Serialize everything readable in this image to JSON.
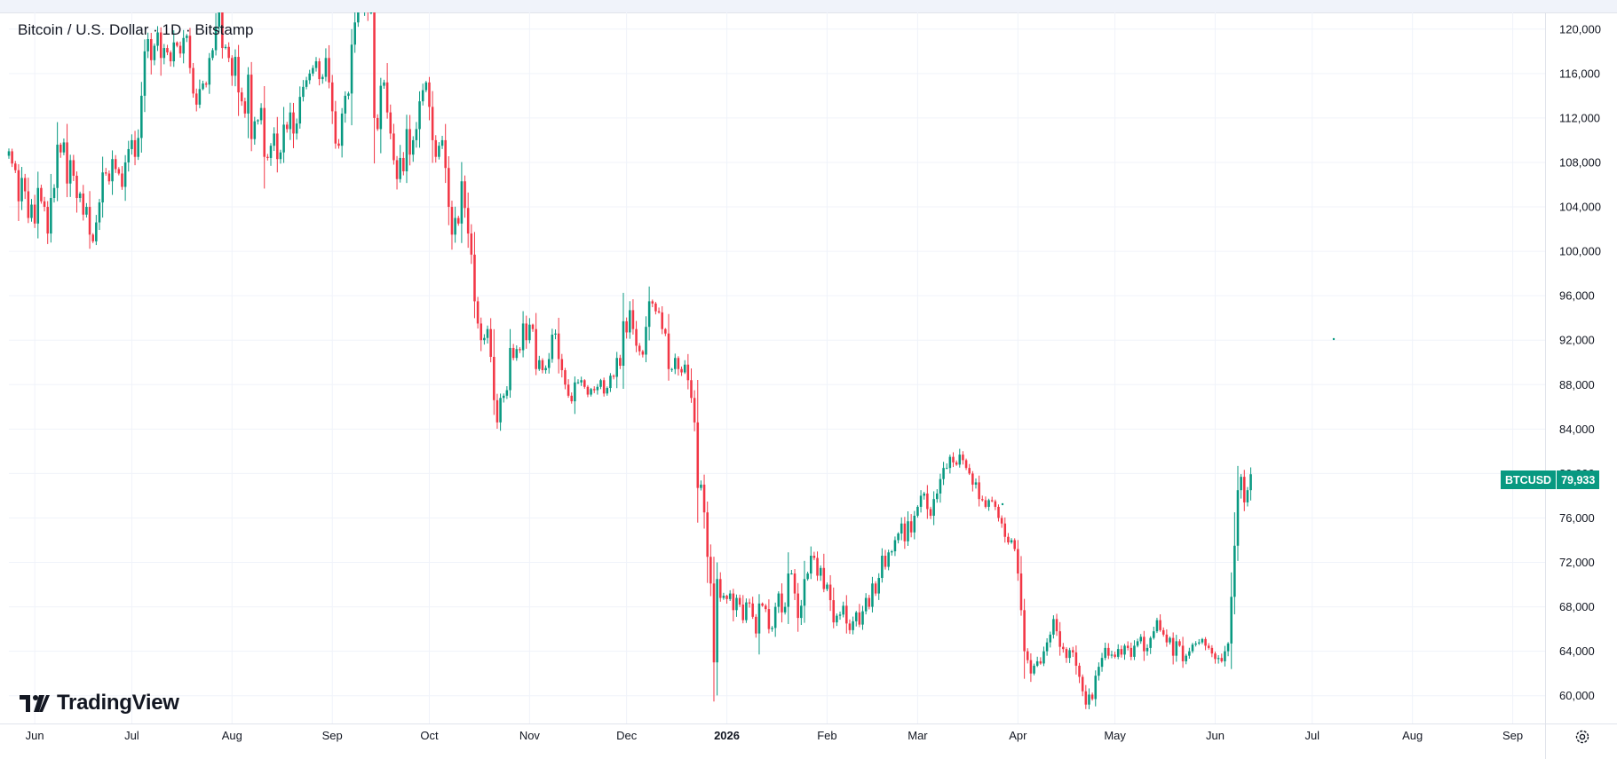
{
  "legend": {
    "title": "Bitcoin / U.S. Dollar · 1D · Bitstamp"
  },
  "branding": {
    "logo_text": "TradingView"
  },
  "price_badge": {
    "symbol": "BTCUSD",
    "value": "79,933"
  },
  "colors": {
    "up": "#089981",
    "down": "#f23645",
    "grid": "#f0f3fa",
    "text": "#131722"
  },
  "icons": {
    "settings": "settings-icon",
    "logo": "tradingview-logo-icon"
  },
  "chart_data": {
    "type": "candlestick",
    "interval": "1D",
    "grid": true,
    "y_axis": {
      "side": "right",
      "range": [
        57500,
        121500
      ],
      "ticks": [
        60000,
        64000,
        68000,
        72000,
        76000,
        80000,
        84000,
        88000,
        92000,
        96000,
        100000,
        104000,
        108000,
        112000,
        116000,
        120000
      ],
      "tick_labels": [
        "60,000",
        "64,000",
        "68,000",
        "72,000",
        "76,000",
        "80,000",
        "84,000",
        "88,000",
        "92,000",
        "96,000",
        "100,000",
        "104,000",
        "108,000",
        "112,000",
        "116,000",
        "120,000"
      ]
    },
    "x_axis": {
      "range": [
        "2025-05-24",
        "2026-09-11"
      ],
      "ticks": [
        {
          "date": "2025-06-01",
          "label": "Jun"
        },
        {
          "date": "2025-07-01",
          "label": "Jul"
        },
        {
          "date": "2025-08-01",
          "label": "Aug"
        },
        {
          "date": "2025-09-01",
          "label": "Sep"
        },
        {
          "date": "2025-10-01",
          "label": "Oct"
        },
        {
          "date": "2025-11-01",
          "label": "Nov"
        },
        {
          "date": "2025-12-01",
          "label": "Dec"
        },
        {
          "date": "2026-01-01",
          "label": "2026",
          "bold": true
        },
        {
          "date": "2026-02-01",
          "label": "Feb"
        },
        {
          "date": "2026-03-01",
          "label": "Mar"
        },
        {
          "date": "2026-04-01",
          "label": "Apr"
        },
        {
          "date": "2026-05-01",
          "label": "May"
        },
        {
          "date": "2026-06-01",
          "label": "Jun"
        },
        {
          "date": "2026-07-01",
          "label": "Jul"
        },
        {
          "date": "2026-08-01",
          "label": "Aug"
        },
        {
          "date": "2026-09-01",
          "label": "Sep"
        }
      ]
    },
    "first_date": "2025-05-24",
    "closes": [
      109000,
      107900,
      107300,
      104500,
      106600,
      105400,
      103000,
      104200,
      102500,
      105700,
      104500,
      104000,
      101600,
      104800,
      105700,
      109600,
      108900,
      109800,
      106100,
      108200,
      106800,
      104800,
      105200,
      103300,
      104000,
      101500,
      100900,
      102600,
      104400,
      107100,
      107000,
      106300,
      108300,
      107400,
      107000,
      105800,
      108000,
      109200,
      110000,
      108500,
      110200,
      114000,
      118000,
      119100,
      117200,
      118500,
      119700,
      117400,
      118300,
      117900,
      117100,
      118800,
      118500,
      117800,
      119200,
      119400,
      116500,
      114200,
      113200,
      114600,
      115100,
      115000,
      117400,
      118100,
      120200,
      123100,
      118300,
      118400,
      117400,
      115800,
      117500,
      114300,
      113500,
      112400,
      115900,
      110100,
      111700,
      111800,
      112900,
      108500,
      108400,
      109500,
      110600,
      108300,
      108900,
      111400,
      111000,
      112500,
      110600,
      111500,
      113900,
      114800,
      115400,
      116000,
      116500,
      117100,
      115500,
      115700,
      117400,
      115200,
      112600,
      109700,
      109500,
      112400,
      114000,
      114200,
      118600,
      120600,
      122200,
      122300,
      124700,
      121500,
      121500,
      112000,
      111000,
      114900,
      115200,
      112500,
      110600,
      108200,
      106500,
      108400,
      107200,
      111000,
      108700,
      110000,
      111000,
      113500,
      114500,
      115200,
      113000,
      110000,
      108500,
      109500,
      110000,
      107500,
      104000,
      101500,
      103000,
      102500,
      106300,
      103900,
      101600,
      99700,
      95500,
      93500,
      92000,
      92200,
      93000,
      90500,
      86600,
      84600,
      86800,
      87000,
      87500,
      91300,
      90400,
      91200,
      91100,
      93500,
      92000,
      93400,
      93000,
      89400,
      90200,
      89300,
      89500,
      90300,
      92500,
      92600,
      90300,
      89300,
      88000,
      87000,
      86500,
      88200,
      88200,
      88400,
      87800,
      87100,
      87600,
      87500,
      87800,
      88400,
      87200,
      87700,
      88800,
      88700,
      90400,
      89700,
      93700,
      92700,
      94700,
      93000,
      91500,
      91000,
      90700,
      93200,
      95500,
      95300,
      94600,
      94500,
      93000,
      92600,
      89400,
      89400,
      90400,
      89400,
      89100,
      89800,
      88400,
      86800,
      84600,
      78700,
      79000,
      76500,
      72500,
      70100,
      63000,
      70500,
      68800,
      69000,
      68700,
      69200,
      67700,
      68800,
      68200,
      66800,
      68400,
      68300,
      67100,
      65600,
      68300,
      68100,
      67800,
      66000,
      66100,
      68000,
      69200,
      67500,
      68000,
      71000,
      71000,
      69200,
      67000,
      68100,
      70500,
      71000,
      72600,
      72400,
      70800,
      71500,
      69600,
      70000,
      68600,
      66600,
      67200,
      67300,
      68100,
      66500,
      65900,
      66700,
      67500,
      66400,
      67600,
      68800,
      68000,
      70100,
      69200,
      70600,
      72600,
      71600,
      72900,
      73000,
      74000,
      74600,
      75500,
      73900,
      75700,
      74700,
      76200,
      77000,
      78000,
      78200,
      76800,
      76200,
      77700,
      78200,
      79500,
      80500,
      80500,
      81500,
      81000,
      80800,
      81700,
      81200,
      80500,
      80000,
      79000,
      79200,
      77700,
      77600,
      77000,
      77600,
      77500,
      77000,
      76000,
      75500,
      74300,
      73800,
      74000,
      73200,
      71000,
      67700,
      64000,
      63200,
      62000,
      62700,
      63100,
      62900,
      64000,
      64800,
      65500,
      66900,
      65800,
      64400,
      64200,
      63400,
      64100,
      63900,
      62700,
      61700,
      60400,
      59200,
      60100,
      59700,
      61800,
      62600,
      63400,
      64300,
      63600,
      63700,
      63500,
      64200,
      63700,
      64500,
      64300,
      63500,
      64500,
      64900,
      65300,
      64000,
      64300,
      65200,
      65800,
      66800,
      65900,
      65500,
      64800,
      65200,
      63600,
      64900,
      64500,
      63100,
      63600,
      64000,
      64600,
      64700,
      64800,
      65100,
      64500,
      64300,
      63800,
      63300,
      63400,
      63100,
      64000,
      64700,
      68900,
      73500,
      78500,
      79700,
      77400,
      78500,
      79933
    ],
    "series": [
      {
        "name": "BTCUSD",
        "last_value": 79933
      }
    ]
  }
}
